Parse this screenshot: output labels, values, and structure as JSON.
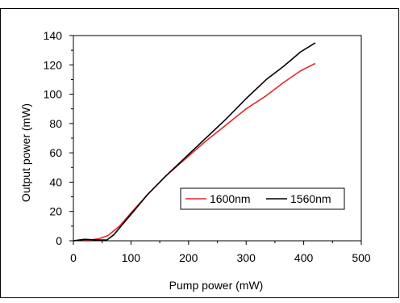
{
  "chart_data": {
    "type": "line",
    "xlabel": "Pump power (mW)",
    "ylabel": "Output power (mW)",
    "xlim": [
      0,
      500
    ],
    "ylim": [
      0,
      140
    ],
    "x_ticks": [
      "0",
      "100",
      "200",
      "300",
      "400",
      "500"
    ],
    "y_ticks": [
      "0",
      "20",
      "40",
      "60",
      "80",
      "100",
      "120",
      "140"
    ],
    "grid": false,
    "legend_position": "lower-right",
    "series": [
      {
        "name": "1600nm",
        "color": "#e8252a",
        "x": [
          0,
          15,
          30,
          45,
          60,
          80,
          100,
          130,
          160,
          195,
          230,
          265,
          300,
          335,
          365,
          395,
          420
        ],
        "y": [
          0,
          0.8,
          0.5,
          1.5,
          3.5,
          10,
          19,
          32,
          44,
          56,
          68,
          79,
          90,
          99,
          108,
          116,
          121
        ]
      },
      {
        "name": "1560nm",
        "color": "#000000",
        "x": [
          0,
          20,
          40,
          58,
          70,
          85,
          100,
          130,
          160,
          195,
          230,
          265,
          300,
          335,
          365,
          395,
          420
        ],
        "y": [
          0,
          1,
          0.5,
          0.5,
          4,
          11,
          18,
          32,
          44,
          57,
          70,
          83,
          97,
          110,
          119,
          129,
          135
        ]
      }
    ]
  }
}
